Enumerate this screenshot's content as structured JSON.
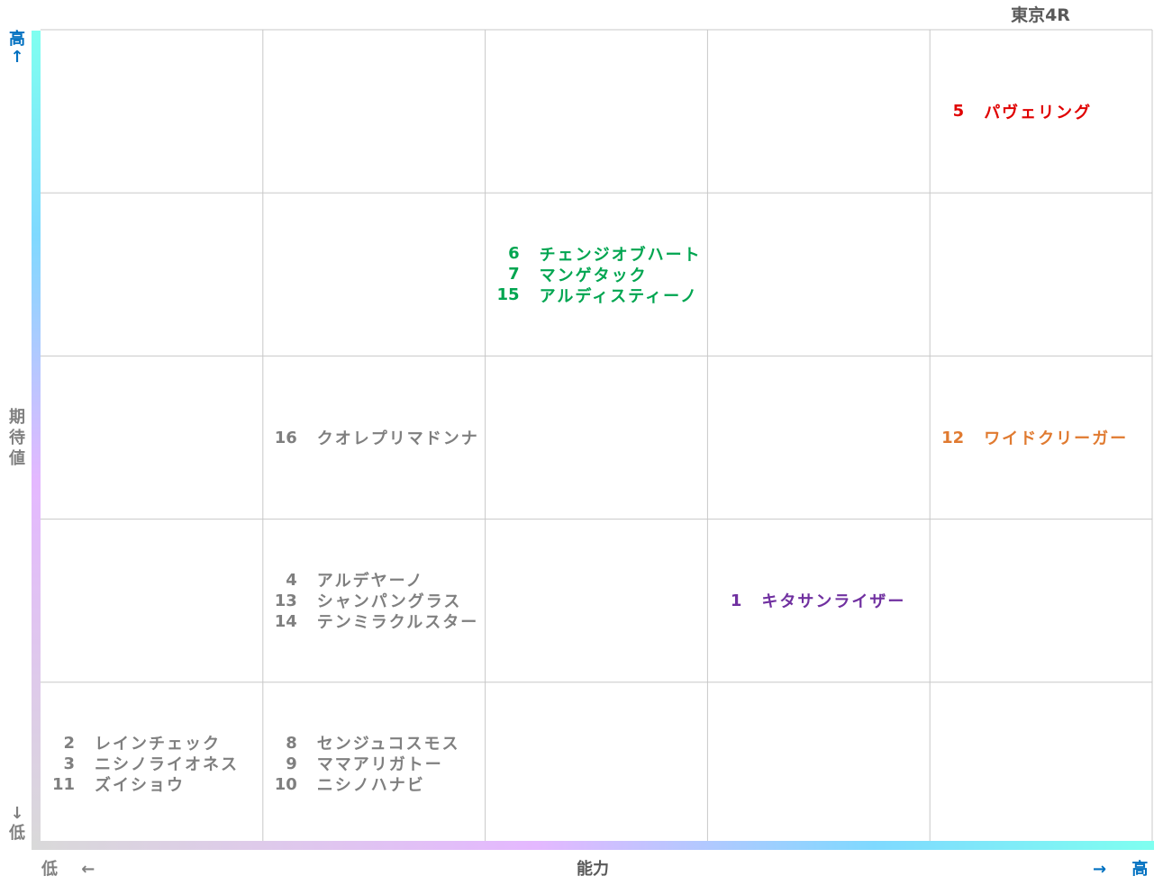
{
  "chart_data": {
    "type": "scatter",
    "title": "東京4R",
    "xlabel": "能力",
    "ylabel": "期待値",
    "x_low_label": "低",
    "x_high_label": "高",
    "y_low_label": "低",
    "y_high_label": "高",
    "x_arrow_left": "←",
    "x_arrow_right": "→",
    "y_arrow_up": "↑",
    "y_arrow_down": "↓",
    "grid": true,
    "columns": 5,
    "rows": 5,
    "cells": [
      {
        "col": 5,
        "row": 5,
        "color": "#e00000",
        "horses": [
          {
            "num": "5",
            "name": "パヴェリング"
          }
        ]
      },
      {
        "col": 3,
        "row": 4,
        "color": "#00a550",
        "horses": [
          {
            "num": "6",
            "name": "チェンジオブハート"
          },
          {
            "num": "7",
            "name": "マンゲタック"
          },
          {
            "num": "15",
            "name": "アルディスティーノ"
          }
        ]
      },
      {
        "col": 2,
        "row": 3,
        "color": "#7f7f7f",
        "horses": [
          {
            "num": "16",
            "name": "クオレプリマドンナ"
          }
        ]
      },
      {
        "col": 5,
        "row": 3,
        "color": "#e07a30",
        "horses": [
          {
            "num": "12",
            "name": "ワイドクリーガー"
          }
        ]
      },
      {
        "col": 2,
        "row": 2,
        "color": "#7f7f7f",
        "horses": [
          {
            "num": "4",
            "name": "アルデヤーノ"
          },
          {
            "num": "13",
            "name": "シャンパングラス"
          },
          {
            "num": "14",
            "name": "テンミラクルスター"
          }
        ]
      },
      {
        "col": 4,
        "row": 2,
        "color": "#7030a0",
        "horses": [
          {
            "num": "1",
            "name": "キタサンライザー"
          }
        ]
      },
      {
        "col": 1,
        "row": 1,
        "color": "#7f7f7f",
        "horses": [
          {
            "num": "2",
            "name": "レインチェック"
          },
          {
            "num": "3",
            "name": "ニシノライオネス"
          },
          {
            "num": "11",
            "name": "ズイショウ"
          }
        ]
      },
      {
        "col": 2,
        "row": 1,
        "color": "#7f7f7f",
        "horses": [
          {
            "num": "8",
            "name": "センジュコスモス"
          },
          {
            "num": "9",
            "name": "ママアリガトー"
          },
          {
            "num": "10",
            "name": "ニシノハナビ"
          }
        ]
      }
    ]
  }
}
